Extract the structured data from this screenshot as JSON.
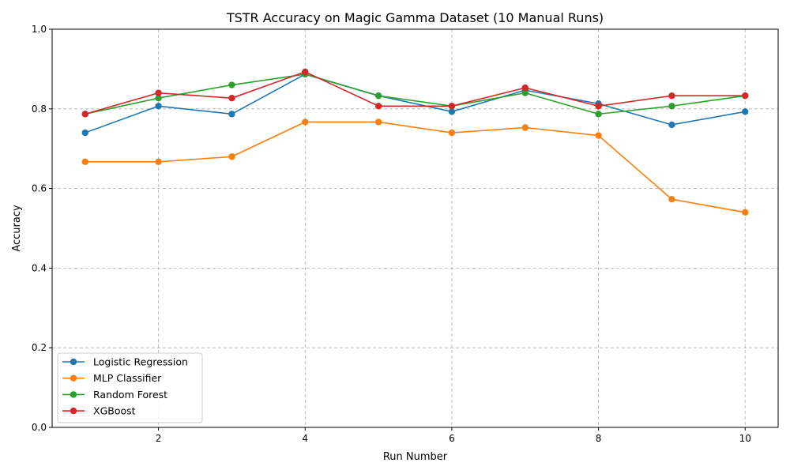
{
  "chart_data": {
    "type": "line",
    "title": "TSTR Accuracy on Magic Gamma Dataset (10 Manual Runs)",
    "xlabel": "Run Number",
    "ylabel": "Accuracy",
    "x": [
      1,
      2,
      3,
      4,
      5,
      6,
      7,
      8,
      9,
      10
    ],
    "xlim": [
      0.55,
      10.45
    ],
    "ylim": [
      0.0,
      1.0
    ],
    "xticks": [
      2,
      4,
      6,
      8,
      10
    ],
    "xtick_labels": [
      "2",
      "4",
      "6",
      "8",
      "10"
    ],
    "yticks": [
      0.0,
      0.2,
      0.4,
      0.6,
      0.8,
      1.0
    ],
    "ytick_labels": [
      "0.0",
      "0.2",
      "0.4",
      "0.6",
      "0.8",
      "1.0"
    ],
    "grid": true,
    "legend_position": "lower-left",
    "series": [
      {
        "name": "Logistic Regression",
        "color": "#1f77b4",
        "marker": "circle",
        "values": [
          0.74,
          0.807,
          0.787,
          0.887,
          0.833,
          0.793,
          0.847,
          0.813,
          0.76,
          0.793
        ]
      },
      {
        "name": "MLP Classifier",
        "color": "#ff7f0e",
        "marker": "circle",
        "values": [
          0.667,
          0.667,
          0.68,
          0.767,
          0.767,
          0.74,
          0.753,
          0.733,
          0.573,
          0.54
        ]
      },
      {
        "name": "Random Forest",
        "color": "#2ca02c",
        "marker": "circle",
        "values": [
          0.787,
          0.827,
          0.86,
          0.887,
          0.833,
          0.807,
          0.84,
          0.787,
          0.807,
          0.833
        ]
      },
      {
        "name": "XGBoost",
        "color": "#d62728",
        "marker": "circle",
        "values": [
          0.787,
          0.84,
          0.827,
          0.893,
          0.807,
          0.807,
          0.853,
          0.807,
          0.833,
          0.833
        ]
      }
    ]
  }
}
